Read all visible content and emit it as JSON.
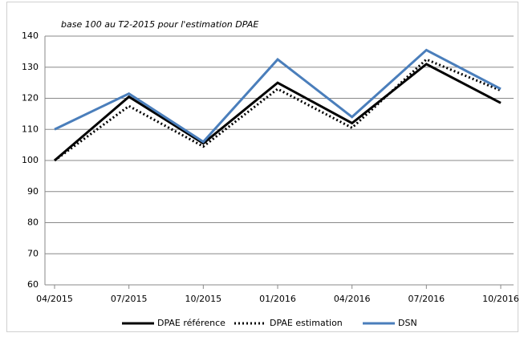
{
  "chart_data": {
    "type": "line",
    "annotation": "base 100 au T2-2015 pour l'estimation DPAE",
    "categories": [
      "04/2015",
      "07/2015",
      "10/2015",
      "01/2016",
      "04/2016",
      "07/2016",
      "10/2016"
    ],
    "series": [
      {
        "name": "DPAE référence",
        "color": "#000000",
        "style": "solid",
        "values": [
          100,
          120.5,
          105.5,
          125,
          112,
          131,
          118.5
        ]
      },
      {
        "name": "DPAE estimation",
        "color": "#000000",
        "style": "dotted",
        "values": [
          100,
          117.5,
          104.5,
          123,
          110.5,
          132.5,
          122.5
        ]
      },
      {
        "name": "DSN",
        "color": "#4a7ebb",
        "style": "solid",
        "values": [
          110,
          121.5,
          106,
          132.5,
          114,
          135.5,
          123
        ]
      }
    ],
    "ylim": [
      60,
      140
    ],
    "yticks": [
      60,
      70,
      80,
      90,
      100,
      110,
      120,
      130,
      140
    ],
    "grid": true,
    "legend": "bottom"
  }
}
